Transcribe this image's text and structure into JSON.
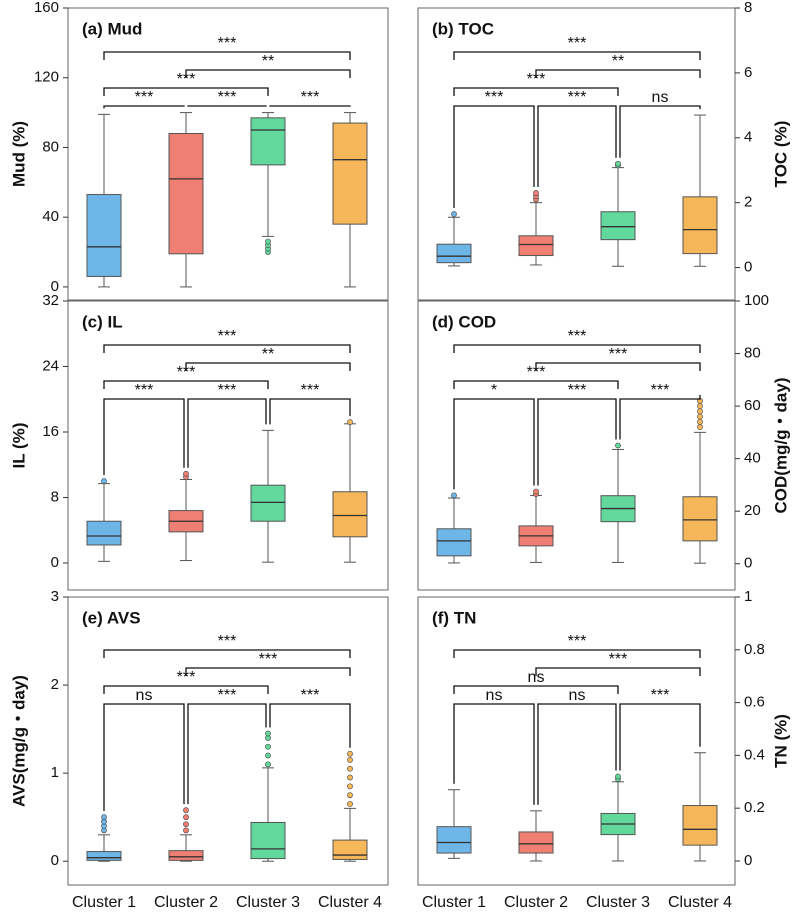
{
  "chart_data": [
    {
      "type": "box",
      "title": "(a) Mud",
      "y_label": "Mud (%)",
      "y_axis_side": "left",
      "ylim": [
        -7.5,
        160
      ],
      "yticks": [
        0,
        40,
        80,
        120,
        160
      ],
      "series": [
        {
          "color": "#6fb6e8",
          "low": 0,
          "q1": 6,
          "median": 23,
          "q3": 53,
          "high": 99,
          "outliers": []
        },
        {
          "color": "#f07f73",
          "low": 0,
          "q1": 19,
          "median": 62,
          "q3": 88,
          "high": 100,
          "outliers": []
        },
        {
          "color": "#62d89c",
          "low": 29,
          "q1": 70,
          "median": 90,
          "q3": 97,
          "high": 100,
          "outliers": [
            20,
            22,
            24,
            26
          ]
        },
        {
          "color": "#f6b75a",
          "low": 0,
          "q1": 36,
          "median": 73,
          "q3": 94,
          "high": 100,
          "outliers": []
        }
      ],
      "comparisons": [
        {
          "pair": [
            0,
            3
          ],
          "label": "***"
        },
        {
          "pair": [
            1,
            3
          ],
          "label": "**"
        },
        {
          "pair": [
            0,
            2
          ],
          "label": "***"
        },
        {
          "pair": [
            0,
            1
          ],
          "label": "***"
        },
        {
          "pair": [
            1,
            2
          ],
          "label": "***"
        },
        {
          "pair": [
            2,
            3
          ],
          "label": "***"
        }
      ]
    },
    {
      "type": "box",
      "title": "(b) TOC",
      "y_label": "TOC (%)",
      "y_axis_side": "right",
      "ylim": [
        -1,
        8
      ],
      "yticks": [
        0,
        2,
        4,
        6,
        8
      ],
      "series": [
        {
          "color": "#6fb6e8",
          "low": 0.05,
          "q1": 0.15,
          "median": 0.35,
          "q3": 0.72,
          "high": 1.55,
          "outliers": [
            1.65
          ]
        },
        {
          "color": "#f07f73",
          "low": 0.08,
          "q1": 0.37,
          "median": 0.71,
          "q3": 0.98,
          "high": 2.0,
          "outliers": [
            2.1,
            2.2,
            2.3
          ]
        },
        {
          "color": "#62d89c",
          "low": 0.04,
          "q1": 0.86,
          "median": 1.26,
          "q3": 1.72,
          "high": 3.08,
          "outliers": [
            3.15,
            3.2
          ]
        },
        {
          "color": "#f6b75a",
          "low": 0.04,
          "q1": 0.43,
          "median": 1.17,
          "q3": 2.18,
          "high": 4.7,
          "outliers": []
        }
      ],
      "comparisons": [
        {
          "pair": [
            0,
            3
          ],
          "label": "***"
        },
        {
          "pair": [
            1,
            3
          ],
          "label": "**"
        },
        {
          "pair": [
            0,
            2
          ],
          "label": "***"
        },
        {
          "pair": [
            0,
            1
          ],
          "label": "***"
        },
        {
          "pair": [
            1,
            2
          ],
          "label": "***"
        },
        {
          "pair": [
            2,
            3
          ],
          "label": "ns"
        }
      ]
    },
    {
      "type": "box",
      "title": "(c) IL",
      "y_label": "IL (%)",
      "y_axis_side": "left",
      "ylim": [
        -3.3,
        32
      ],
      "yticks": [
        0,
        8,
        16,
        24,
        32
      ],
      "series": [
        {
          "color": "#6fb6e8",
          "low": 0.2,
          "q1": 2.2,
          "median": 3.3,
          "q3": 5.1,
          "high": 9.7,
          "outliers": [
            10
          ]
        },
        {
          "color": "#f07f73",
          "low": 0.3,
          "q1": 3.8,
          "median": 5.1,
          "q3": 6.4,
          "high": 10.2,
          "outliers": [
            10.5,
            10.9
          ]
        },
        {
          "color": "#62d89c",
          "low": 0.1,
          "q1": 5.1,
          "median": 7.4,
          "q3": 9.5,
          "high": 16.2,
          "outliers": []
        },
        {
          "color": "#f6b75a",
          "low": 0.1,
          "q1": 3.2,
          "median": 5.8,
          "q3": 8.7,
          "high": 17.0,
          "outliers": [
            17.2
          ]
        }
      ],
      "comparisons": [
        {
          "pair": [
            0,
            3
          ],
          "label": "***"
        },
        {
          "pair": [
            1,
            3
          ],
          "label": "**"
        },
        {
          "pair": [
            0,
            2
          ],
          "label": "***"
        },
        {
          "pair": [
            0,
            1
          ],
          "label": "***"
        },
        {
          "pair": [
            1,
            2
          ],
          "label": "***"
        },
        {
          "pair": [
            2,
            3
          ],
          "label": "***"
        }
      ]
    },
    {
      "type": "box",
      "title": "(d) COD",
      "y_label": "COD(mg/g・day)",
      "y_axis_side": "right",
      "ylim": [
        -10,
        100
      ],
      "yticks": [
        0,
        20,
        40,
        60,
        80,
        100
      ],
      "series": [
        {
          "color": "#6fb6e8",
          "low": 0.3,
          "q1": 3,
          "median": 8.7,
          "q3": 13.3,
          "high": 25,
          "outliers": [
            26
          ]
        },
        {
          "color": "#f07f73",
          "low": 0.5,
          "q1": 6.8,
          "median": 10.6,
          "q3": 14.4,
          "high": 26,
          "outliers": [
            26.5,
            27.5
          ]
        },
        {
          "color": "#62d89c",
          "low": 0.5,
          "q1": 16,
          "median": 21,
          "q3": 25.9,
          "high": 43.5,
          "outliers": [
            45
          ]
        },
        {
          "color": "#f6b75a",
          "low": 0.2,
          "q1": 8.7,
          "median": 16.7,
          "q3": 25.5,
          "high": 50,
          "outliers": [
            52,
            54,
            56,
            58,
            60,
            62
          ]
        }
      ],
      "comparisons": [
        {
          "pair": [
            0,
            3
          ],
          "label": "***"
        },
        {
          "pair": [
            1,
            3
          ],
          "label": "***"
        },
        {
          "pair": [
            0,
            2
          ],
          "label": "***"
        },
        {
          "pair": [
            0,
            1
          ],
          "label": "*"
        },
        {
          "pair": [
            1,
            2
          ],
          "label": "***"
        },
        {
          "pair": [
            2,
            3
          ],
          "label": "***"
        }
      ]
    },
    {
      "type": "box",
      "title": "(e) AVS",
      "y_label": "AVS(mg/g・day)",
      "y_axis_side": "left",
      "ylim": [
        -0.27,
        3
      ],
      "yticks": [
        0,
        1,
        2,
        3
      ],
      "categories": [
        "Cluster 1",
        "Cluster 2",
        "Cluster 3",
        "Cluster 4"
      ],
      "series": [
        {
          "color": "#6fb6e8",
          "low": 0,
          "q1": 0.01,
          "median": 0.04,
          "q3": 0.11,
          "high": 0.3,
          "outliers": [
            0.35,
            0.4,
            0.45,
            0.5
          ]
        },
        {
          "color": "#f07f73",
          "low": 0,
          "q1": 0.01,
          "median": 0.05,
          "q3": 0.12,
          "high": 0.3,
          "outliers": [
            0.35,
            0.42,
            0.5,
            0.58
          ]
        },
        {
          "color": "#62d89c",
          "low": 0,
          "q1": 0.03,
          "median": 0.14,
          "q3": 0.44,
          "high": 1.06,
          "outliers": [
            1.1,
            1.2,
            1.3,
            1.4,
            1.45
          ]
        },
        {
          "color": "#f6b75a",
          "low": 0,
          "q1": 0.02,
          "median": 0.07,
          "q3": 0.24,
          "high": 0.6,
          "outliers": [
            0.65,
            0.75,
            0.85,
            0.95,
            1.05,
            1.15,
            1.22
          ]
        }
      ],
      "comparisons": [
        {
          "pair": [
            0,
            3
          ],
          "label": "***"
        },
        {
          "pair": [
            1,
            3
          ],
          "label": "***"
        },
        {
          "pair": [
            0,
            2
          ],
          "label": "***"
        },
        {
          "pair": [
            0,
            1
          ],
          "label": "ns"
        },
        {
          "pair": [
            1,
            2
          ],
          "label": "***"
        },
        {
          "pair": [
            2,
            3
          ],
          "label": "***"
        }
      ]
    },
    {
      "type": "box",
      "title": "(f) TN",
      "y_label": "TN (%)",
      "y_axis_side": "right",
      "ylim": [
        -0.091,
        1
      ],
      "yticks": [
        0,
        0.2,
        0.4,
        0.6,
        0.8,
        1
      ],
      "categories": [
        "Cluster 1",
        "Cluster 2",
        "Cluster 3",
        "Cluster 4"
      ],
      "series": [
        {
          "color": "#6fb6e8",
          "low": 0.01,
          "q1": 0.03,
          "median": 0.07,
          "q3": 0.13,
          "high": 0.27,
          "outliers": []
        },
        {
          "color": "#f07f73",
          "low": 0,
          "q1": 0.03,
          "median": 0.065,
          "q3": 0.11,
          "high": 0.19,
          "outliers": []
        },
        {
          "color": "#62d89c",
          "low": 0,
          "q1": 0.1,
          "median": 0.14,
          "q3": 0.18,
          "high": 0.3,
          "outliers": [
            0.31,
            0.32
          ]
        },
        {
          "color": "#f6b75a",
          "low": 0,
          "q1": 0.06,
          "median": 0.12,
          "q3": 0.21,
          "high": 0.41,
          "outliers": []
        }
      ],
      "comparisons": [
        {
          "pair": [
            0,
            3
          ],
          "label": "***"
        },
        {
          "pair": [
            1,
            3
          ],
          "label": "***"
        },
        {
          "pair": [
            0,
            2
          ],
          "label": "ns"
        },
        {
          "pair": [
            0,
            1
          ],
          "label": "ns"
        },
        {
          "pair": [
            1,
            2
          ],
          "label": "ns"
        },
        {
          "pair": [
            2,
            3
          ],
          "label": "***"
        }
      ]
    }
  ]
}
